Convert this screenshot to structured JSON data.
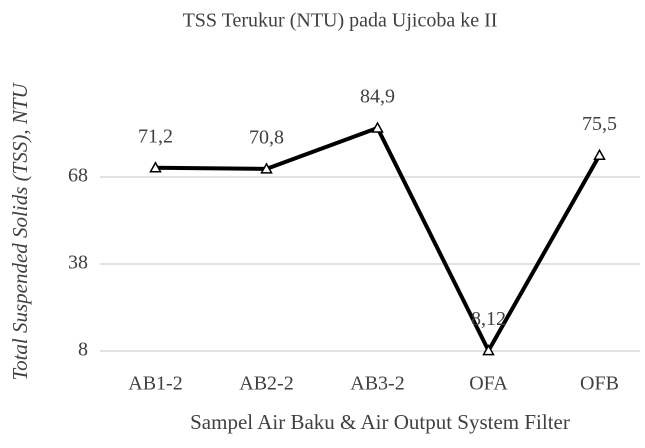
{
  "chart_data": {
    "type": "line",
    "title": "TSS Terukur (NTU) pada Ujicoba ke II",
    "x_label": "Sampel Air Baku & Air Output System Filter",
    "y_label": "Total Suspended Solids (TSS),  NTU",
    "categories": [
      "AB1-2",
      "AB2-2",
      "AB3-2",
      "OFA",
      "OFB"
    ],
    "series": [
      {
        "name": "TSS",
        "color": "#000000",
        "values": [
          71.2,
          70.8,
          84.9,
          8.12,
          75.5
        ],
        "value_labels": [
          "71,2",
          "70,8",
          "84,9",
          "8,12",
          "75,5"
        ]
      }
    ],
    "ylim": [
      8,
      98
    ],
    "yticks": [
      8,
      38,
      68
    ],
    "grid": true
  }
}
